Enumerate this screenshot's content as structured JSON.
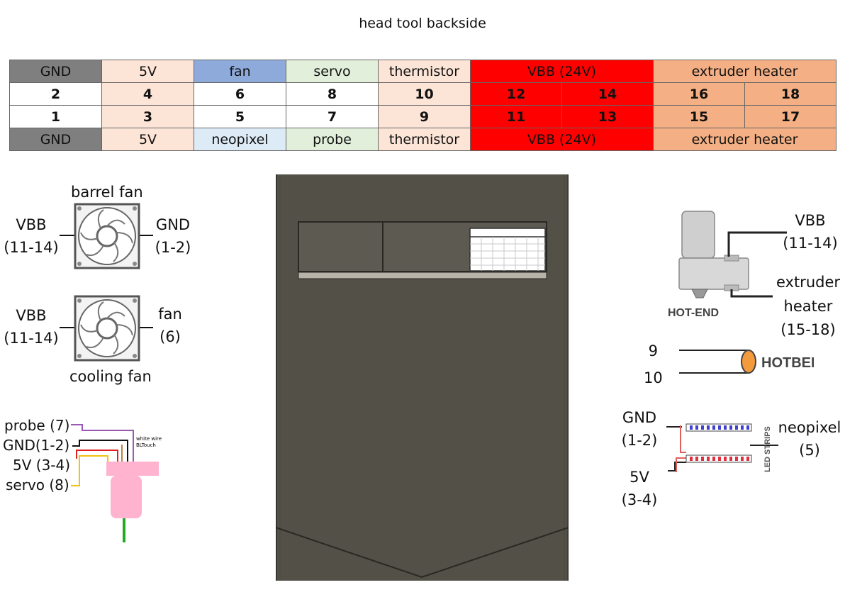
{
  "title": "head tool backside",
  "colors": {
    "gnd": "#7f7f7f",
    "v5": "#fce4d6",
    "fan": "#8eaadb",
    "servo": "#e2efda",
    "thermistor": "#fce4d6",
    "vbb": "#ff0000",
    "heater": "#f4b084",
    "neopixel": "#ddebf7",
    "white": "#ffffff",
    "panel": "#535048"
  },
  "pin_table": {
    "top_labels": [
      {
        "text": "GND",
        "span": 1,
        "color": "gnd"
      },
      {
        "text": "5V",
        "span": 1,
        "color": "v5"
      },
      {
        "text": "fan",
        "span": 1,
        "color": "fan"
      },
      {
        "text": "servo",
        "span": 1,
        "color": "servo"
      },
      {
        "text": "thermistor",
        "span": 1,
        "color": "thermistor"
      },
      {
        "text": "VBB (24V)",
        "span": 2,
        "color": "vbb"
      },
      {
        "text": "extruder heater",
        "span": 2,
        "color": "heater"
      }
    ],
    "even_pins": [
      {
        "text": "2",
        "color": "white"
      },
      {
        "text": "4",
        "color": "v5"
      },
      {
        "text": "6",
        "color": "white"
      },
      {
        "text": "8",
        "color": "white"
      },
      {
        "text": "10",
        "color": "thermistor"
      },
      {
        "text": "12",
        "color": "vbb"
      },
      {
        "text": "14",
        "color": "vbb"
      },
      {
        "text": "16",
        "color": "heater"
      },
      {
        "text": "18",
        "color": "heater"
      }
    ],
    "odd_pins": [
      {
        "text": "1",
        "color": "white"
      },
      {
        "text": "3",
        "color": "v5"
      },
      {
        "text": "5",
        "color": "white"
      },
      {
        "text": "7",
        "color": "white"
      },
      {
        "text": "9",
        "color": "thermistor"
      },
      {
        "text": "11",
        "color": "vbb"
      },
      {
        "text": "13",
        "color": "vbb"
      },
      {
        "text": "15",
        "color": "heater"
      },
      {
        "text": "17",
        "color": "heater"
      }
    ],
    "bottom_labels": [
      {
        "text": "GND",
        "span": 1,
        "color": "gnd"
      },
      {
        "text": "5V",
        "span": 1,
        "color": "v5"
      },
      {
        "text": "neopixel",
        "span": 1,
        "color": "neopixel"
      },
      {
        "text": "probe",
        "span": 1,
        "color": "servo"
      },
      {
        "text": "thermistor",
        "span": 1,
        "color": "thermistor"
      },
      {
        "text": "VBB (24V)",
        "span": 2,
        "color": "vbb"
      },
      {
        "text": "extruder heater",
        "span": 2,
        "color": "heater"
      }
    ]
  },
  "barrel_fan": {
    "title": "barrel fan",
    "left_a": "VBB",
    "left_b": "(11-14)",
    "right_a": "GND",
    "right_b": "(1-2)"
  },
  "cooling_fan": {
    "title": "cooling fan",
    "left_a": "VBB",
    "left_b": "(11-14)",
    "right_a": "fan",
    "right_b": "(6)"
  },
  "bltouch": {
    "probe": "probe (7)",
    "gnd": "GND(1-2)",
    "v5": "5V (3-4)",
    "servo": "servo (8)",
    "note_a": "white wire of",
    "note_b": "BLTouch"
  },
  "hotend": {
    "caption": "HOT-END",
    "vbb_a": "VBB",
    "vbb_b": "(11-14)",
    "heater_a": "extruder",
    "heater_b": "heater",
    "heater_c": "(15-18)"
  },
  "hotbed": {
    "caption": "HOTBED",
    "pin_a": "9",
    "pin_b": "10"
  },
  "led": {
    "caption": "LED STRIPS",
    "gnd_a": "GND",
    "gnd_b": "(1-2)",
    "v5_a": "5V",
    "v5_b": "(3-4)",
    "neo_a": "neopixel",
    "neo_b": "(5)"
  }
}
